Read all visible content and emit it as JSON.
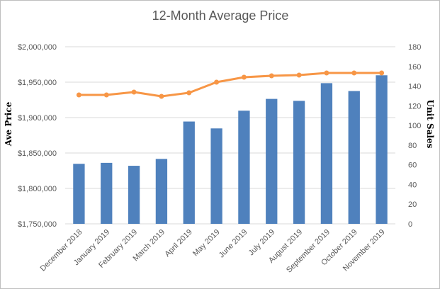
{
  "chart_data": {
    "type": "bar",
    "title": "12-Month Average Price",
    "ylabel": "Ave Price",
    "y2label": "Unit Sales",
    "ylim": [
      1750000,
      2000000
    ],
    "y2lim": [
      0,
      180
    ],
    "grid": true,
    "legend": "none",
    "categories": [
      "December 2018",
      "January 2019",
      "February 2019",
      "March 2019",
      "April 2019",
      "May 2019",
      "June 2019",
      "July 2019",
      "August 2019",
      "September 2019",
      "October 2019",
      "November 2019"
    ],
    "y_ticks": [
      "$1,750,000",
      "$1,800,000",
      "$1,850,000",
      "$1,900,000",
      "$1,950,000",
      "$2,000,000"
    ],
    "y_tick_values": [
      1750000,
      1800000,
      1850000,
      1900000,
      1950000,
      2000000
    ],
    "y2_ticks": [
      "0",
      "20",
      "40",
      "60",
      "80",
      "100",
      "120",
      "140",
      "160",
      "180"
    ],
    "y2_tick_values": [
      0,
      20,
      40,
      60,
      80,
      100,
      120,
      140,
      160,
      180
    ],
    "series": [
      {
        "type": "bar",
        "axis": "right",
        "color": "#4f81bd",
        "values": [
          61,
          62,
          59,
          66,
          104,
          97,
          115,
          127,
          125,
          143,
          135,
          151
        ]
      },
      {
        "type": "line",
        "axis": "left",
        "color": "#f79646",
        "values": [
          1932000,
          1932000,
          1936000,
          1930000,
          1935000,
          1950000,
          1957000,
          1959000,
          1960000,
          1963000,
          1963000,
          1963000
        ]
      }
    ]
  }
}
